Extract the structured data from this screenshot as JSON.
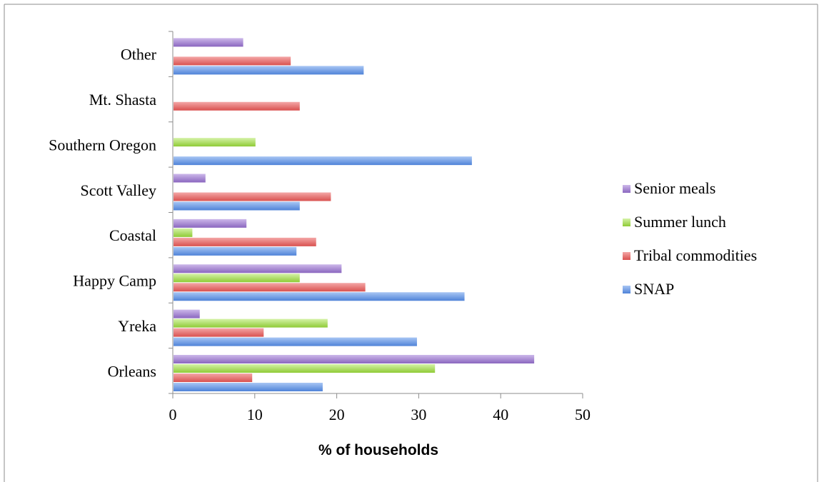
{
  "chart_data": {
    "type": "bar",
    "orientation": "horizontal",
    "categories": [
      "Orleans",
      "Yreka",
      "Happy Camp",
      "Coastal",
      "Scott Valley",
      "Southern Oregon",
      "Mt. Shasta",
      "Other"
    ],
    "series": [
      {
        "name": "SNAP",
        "color": "#6f9ce6",
        "values": [
          18.2,
          29.7,
          35.5,
          15.0,
          15.4,
          36.4,
          null,
          23.2
        ]
      },
      {
        "name": "Tribal commodities",
        "color": "#e86f6f",
        "values": [
          9.6,
          11.0,
          23.4,
          17.4,
          19.2,
          null,
          15.4,
          14.3
        ]
      },
      {
        "name": "Summer lunch",
        "color": "#a9dd5c",
        "values": [
          31.9,
          18.8,
          15.4,
          2.3,
          null,
          10.0,
          null,
          null
        ]
      },
      {
        "name": "Senior meals",
        "color": "#a686d2",
        "values": [
          44.0,
          3.2,
          20.5,
          8.9,
          3.9,
          null,
          null,
          8.5
        ]
      }
    ],
    "xlabel": "% of households",
    "ylabel": "",
    "xlim": [
      0,
      50
    ],
    "xticks": [
      0,
      10,
      20,
      30,
      40,
      50
    ],
    "grid": false,
    "legend_position": "right"
  }
}
